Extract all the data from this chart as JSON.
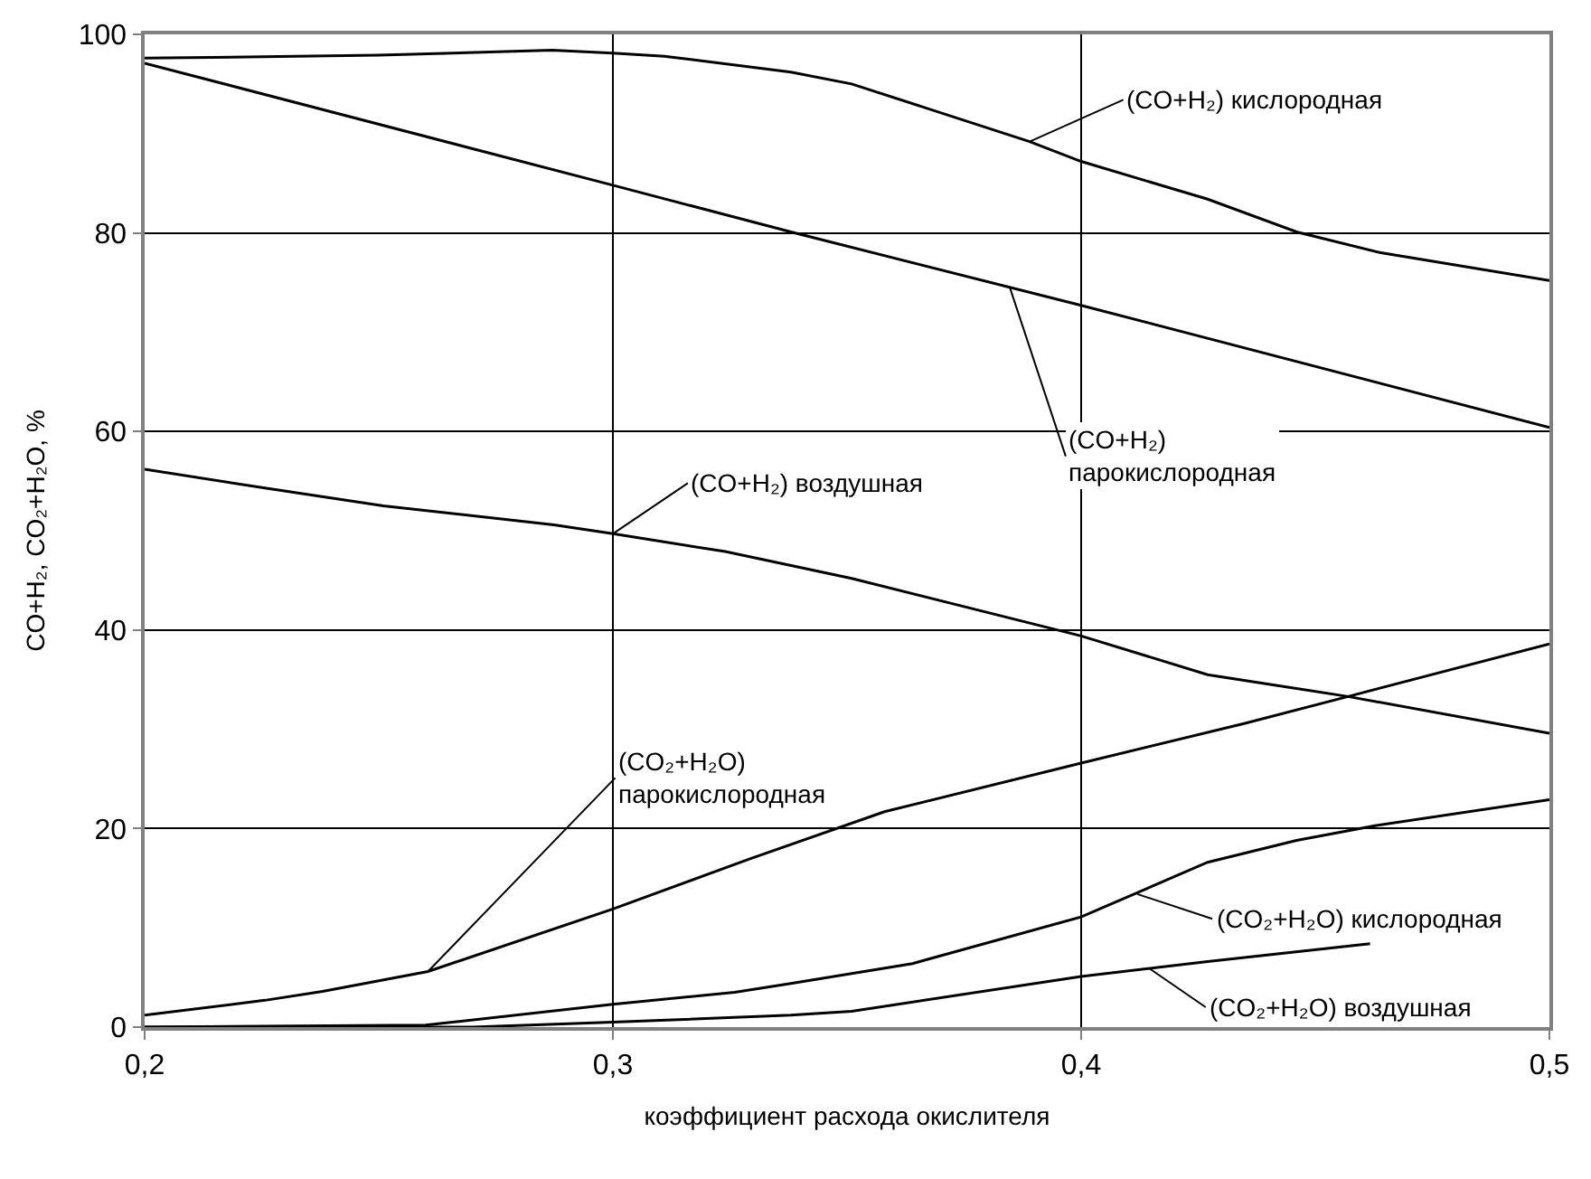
{
  "chart_data": {
    "type": "line",
    "xlabel": "коэффициент расхода окислителя",
    "ylabel": "CO+H₂, CO₂+H₂O, %",
    "xlim": [
      0.2,
      0.5
    ],
    "ylim": [
      0,
      100
    ],
    "xticks": [
      {
        "value": 0.2,
        "label": "0,2"
      },
      {
        "value": 0.3,
        "label": "0,3"
      },
      {
        "value": 0.4,
        "label": "0,4"
      },
      {
        "value": 0.5,
        "label": "0,5"
      }
    ],
    "yticks": [
      0,
      20,
      40,
      60,
      80,
      100
    ],
    "grid": true,
    "marker": "none",
    "line_style": "solid",
    "series": [
      {
        "color": "#000000",
        "x": [
          0.2,
          0.25,
          0.287,
          0.3,
          0.311,
          0.338,
          0.351,
          0.389,
          0.4,
          0.427,
          0.446,
          0.464,
          0.5
        ],
        "values": [
          97.6,
          97.9,
          98.4,
          98.1,
          97.8,
          96.2,
          95.0,
          89.2,
          87.2,
          83.4,
          80.1,
          78.0,
          75.2
        ]
      },
      {
        "color": "#000000",
        "x": [
          0.2,
          0.3,
          0.338,
          0.4,
          0.5
        ],
        "values": [
          97.1,
          84.8,
          80.1,
          72.7,
          60.4
        ]
      },
      {
        "color": "#000000",
        "x": [
          0.2,
          0.2257,
          0.251,
          0.2874,
          0.3,
          0.324,
          0.351,
          0.4,
          0.427,
          0.457,
          0.5
        ],
        "values": [
          56.2,
          54.3,
          52.5,
          50.6,
          49.7,
          47.9,
          45.2,
          39.4,
          35.5,
          33.3,
          29.6
        ]
      },
      {
        "color": "#000000",
        "x": [
          0.2,
          0.2257,
          0.238,
          0.2605,
          0.3,
          0.329,
          0.358,
          0.4,
          0.435,
          0.457,
          0.5
        ],
        "values": [
          1.2,
          2.7,
          3.6,
          5.6,
          11.9,
          16.9,
          21.7,
          26.6,
          30.6,
          33.3,
          38.6
        ]
      },
      {
        "color": "#000000",
        "x": [
          0.2,
          0.26,
          0.3,
          0.326,
          0.338,
          0.364,
          0.4,
          0.427,
          0.446,
          0.463,
          0.5
        ],
        "values": [
          0,
          0.2,
          2.3,
          3.5,
          4.4,
          6.4,
          11.1,
          16.6,
          18.8,
          20.3,
          22.9
        ]
      },
      {
        "color": "#000000",
        "x": [
          0.2,
          0.27,
          0.3,
          0.338,
          0.351,
          0.4,
          0.427,
          0.4617
        ],
        "values": [
          0,
          0,
          0.5,
          1.2,
          1.6,
          5.1,
          6.6,
          8.4
        ]
      }
    ],
    "annotations": [
      {
        "text": "(CO+H₂) кислородная",
        "x": 0.389,
        "y": 89.2
      },
      {
        "text": "(CO+H₂)\nпарокислородная",
        "x": 0.3847,
        "y": 74.6
      },
      {
        "text": "(CO+H₂) воздушная",
        "x": 0.3,
        "y": 49.7
      },
      {
        "text": "(CO₂+H₂O)\nпарокислородная",
        "x": 0.2605,
        "y": 5.6
      },
      {
        "text": "(CO₂+H₂O) кислородная",
        "x": 0.412,
        "y": 13.4
      },
      {
        "text": "(CO₂+H₂O) воздушная",
        "x": 0.4146,
        "y": 5.9
      }
    ]
  }
}
